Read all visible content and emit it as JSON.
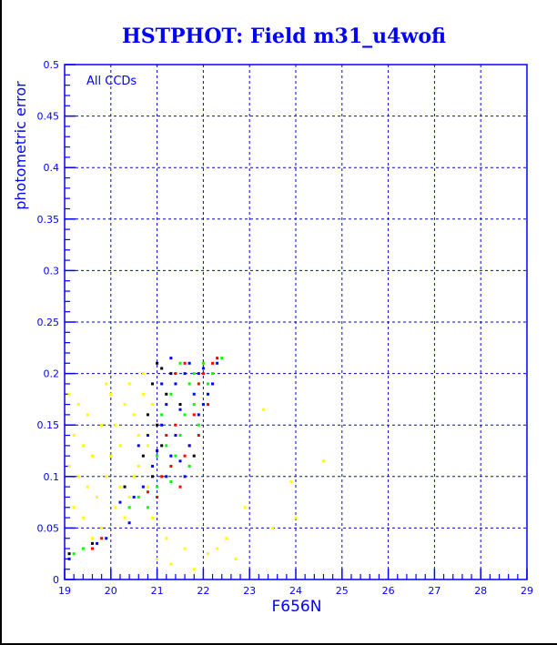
{
  "chart_data": {
    "type": "scatter",
    "title": "HSTPHOT: Field m31_u4wofi",
    "xlabel": "F656N",
    "ylabel": "photometric error",
    "annotation": "All CCDs",
    "xlim": [
      19,
      29
    ],
    "ylim": [
      0,
      0.5
    ],
    "xticks": [
      "19",
      "20",
      "21",
      "22",
      "23",
      "24",
      "25",
      "26",
      "27",
      "28",
      "29"
    ],
    "yticks": [
      "0",
      "0.05",
      "0.1",
      "0.15",
      "0.2",
      "0.25",
      "0.3",
      "0.35",
      "0.4",
      "0.45",
      "0.5"
    ],
    "grid": true,
    "series": [
      {
        "name": "yellow",
        "color": "#ffff00",
        "points": [
          [
            19.1,
            0.18
          ],
          [
            19.3,
            0.17
          ],
          [
            19.5,
            0.16
          ],
          [
            19.2,
            0.14
          ],
          [
            19.4,
            0.13
          ],
          [
            19.6,
            0.12
          ],
          [
            19.1,
            0.11
          ],
          [
            19.3,
            0.1
          ],
          [
            19.5,
            0.09
          ],
          [
            19.7,
            0.08
          ],
          [
            19.2,
            0.07
          ],
          [
            19.4,
            0.06
          ],
          [
            19.8,
            0.05
          ],
          [
            19.9,
            0.1
          ],
          [
            20.0,
            0.12
          ],
          [
            20.1,
            0.15
          ],
          [
            20.2,
            0.13
          ],
          [
            20.3,
            0.17
          ],
          [
            20.4,
            0.19
          ],
          [
            20.5,
            0.16
          ],
          [
            20.6,
            0.14
          ],
          [
            20.7,
            0.2
          ],
          [
            20.2,
            0.09
          ],
          [
            20.4,
            0.08
          ],
          [
            20.6,
            0.11
          ],
          [
            20.8,
            0.13
          ],
          [
            20.9,
            0.17
          ],
          [
            20.1,
            0.07
          ],
          [
            20.3,
            0.06
          ],
          [
            19.9,
            0.19
          ],
          [
            20.5,
            0.1
          ],
          [
            20.7,
            0.18
          ],
          [
            20.8,
            0.09
          ],
          [
            19.6,
            0.04
          ],
          [
            19.8,
            0.15
          ],
          [
            21.0,
            0.02
          ],
          [
            21.3,
            0.015
          ],
          [
            21.6,
            0.03
          ],
          [
            21.8,
            0.01
          ],
          [
            22.1,
            0.025
          ],
          [
            22.3,
            0.03
          ],
          [
            22.5,
            0.04
          ],
          [
            22.7,
            0.02
          ],
          [
            23.3,
            0.165
          ],
          [
            23.9,
            0.095
          ],
          [
            24.0,
            0.06
          ],
          [
            24.6,
            0.115
          ],
          [
            23.5,
            0.05
          ],
          [
            22.9,
            0.07
          ],
          [
            21.2,
            0.04
          ],
          [
            20.9,
            0.06
          ],
          [
            20.0,
            0.18
          ]
        ]
      },
      {
        "name": "black",
        "color": "#000000",
        "points": [
          [
            21.0,
            0.21
          ],
          [
            21.1,
            0.205
          ],
          [
            20.9,
            0.19
          ],
          [
            21.2,
            0.18
          ],
          [
            20.8,
            0.16
          ],
          [
            21.0,
            0.15
          ],
          [
            20.7,
            0.12
          ],
          [
            21.1,
            0.13
          ],
          [
            19.1,
            0.025
          ],
          [
            19.6,
            0.035
          ],
          [
            21.3,
            0.2
          ],
          [
            20.9,
            0.1
          ],
          [
            21.5,
            0.17
          ],
          [
            21.8,
            0.12
          ],
          [
            20.3,
            0.09
          ]
        ]
      },
      {
        "name": "red",
        "color": "#ff0000",
        "points": [
          [
            21.6,
            0.21
          ],
          [
            21.9,
            0.19
          ],
          [
            22.1,
            0.17
          ],
          [
            21.4,
            0.15
          ],
          [
            21.7,
            0.13
          ],
          [
            22.0,
            0.2
          ],
          [
            21.3,
            0.11
          ],
          [
            21.5,
            0.09
          ],
          [
            21.2,
            0.14
          ],
          [
            21.8,
            0.16
          ],
          [
            22.2,
            0.21
          ],
          [
            21.1,
            0.1
          ],
          [
            20.8,
            0.085
          ],
          [
            19.6,
            0.03
          ],
          [
            19.8,
            0.04
          ],
          [
            21.4,
            0.2
          ],
          [
            21.9,
            0.14
          ],
          [
            21.0,
            0.08
          ],
          [
            22.3,
            0.215
          ],
          [
            21.6,
            0.12
          ]
        ]
      },
      {
        "name": "green",
        "color": "#00ff00",
        "points": [
          [
            21.5,
            0.21
          ],
          [
            21.8,
            0.2
          ],
          [
            22.1,
            0.19
          ],
          [
            21.3,
            0.18
          ],
          [
            21.6,
            0.16
          ],
          [
            21.9,
            0.15
          ],
          [
            21.2,
            0.13
          ],
          [
            21.4,
            0.12
          ],
          [
            21.7,
            0.11
          ],
          [
            21.0,
            0.09
          ],
          [
            20.8,
            0.07
          ],
          [
            20.6,
            0.08
          ],
          [
            19.4,
            0.03
          ],
          [
            19.2,
            0.025
          ],
          [
            21.1,
            0.16
          ],
          [
            22.0,
            0.21
          ],
          [
            21.5,
            0.14
          ],
          [
            21.8,
            0.17
          ],
          [
            20.4,
            0.07
          ],
          [
            21.3,
            0.095
          ],
          [
            22.2,
            0.2
          ],
          [
            21.0,
            0.12
          ],
          [
            22.4,
            0.215
          ],
          [
            21.7,
            0.19
          ]
        ]
      },
      {
        "name": "blue",
        "color": "#0000ff",
        "points": [
          [
            21.3,
            0.215
          ],
          [
            21.7,
            0.21
          ],
          [
            22.0,
            0.205
          ],
          [
            22.3,
            0.21
          ],
          [
            21.4,
            0.19
          ],
          [
            21.8,
            0.18
          ],
          [
            22.1,
            0.18
          ],
          [
            21.2,
            0.17
          ],
          [
            21.5,
            0.165
          ],
          [
            21.9,
            0.16
          ],
          [
            21.1,
            0.15
          ],
          [
            21.4,
            0.14
          ],
          [
            21.7,
            0.13
          ],
          [
            21.0,
            0.125
          ],
          [
            21.3,
            0.12
          ],
          [
            21.6,
            0.1
          ],
          [
            21.2,
            0.1
          ],
          [
            20.9,
            0.11
          ],
          [
            20.7,
            0.09
          ],
          [
            20.5,
            0.08
          ],
          [
            20.2,
            0.075
          ],
          [
            19.9,
            0.04
          ],
          [
            19.7,
            0.035
          ],
          [
            19.1,
            0.02
          ],
          [
            21.9,
            0.2
          ],
          [
            22.2,
            0.19
          ],
          [
            21.6,
            0.2
          ],
          [
            20.8,
            0.14
          ],
          [
            20.6,
            0.13
          ],
          [
            22.0,
            0.17
          ],
          [
            21.1,
            0.19
          ],
          [
            21.5,
            0.115
          ],
          [
            20.4,
            0.055
          ]
        ]
      }
    ]
  }
}
